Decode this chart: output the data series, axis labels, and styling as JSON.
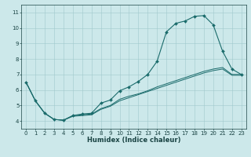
{
  "xlabel": "Humidex (Indice chaleur)",
  "bg_color": "#cce8ea",
  "grid_color": "#a0c8cc",
  "line_color": "#1a6b6b",
  "xlim": [
    -0.5,
    23.5
  ],
  "ylim": [
    3.5,
    11.5
  ],
  "xticks": [
    0,
    1,
    2,
    3,
    4,
    5,
    6,
    7,
    8,
    9,
    10,
    11,
    12,
    13,
    14,
    15,
    16,
    17,
    18,
    19,
    20,
    21,
    22,
    23
  ],
  "yticks": [
    4,
    5,
    6,
    7,
    8,
    9,
    10,
    11
  ],
  "series1_x": [
    0,
    1,
    2,
    3,
    4,
    5,
    6,
    7,
    8,
    9,
    10,
    11,
    12,
    13,
    14,
    15,
    16,
    17,
    18,
    19,
    20,
    21,
    22,
    23
  ],
  "series1_y": [
    6.5,
    5.3,
    4.5,
    4.1,
    4.05,
    4.35,
    4.45,
    4.5,
    5.15,
    5.35,
    5.95,
    6.2,
    6.55,
    7.0,
    7.85,
    9.75,
    10.3,
    10.45,
    10.75,
    10.8,
    10.2,
    8.5,
    7.35,
    7.0
  ],
  "series2_x": [
    0,
    1,
    2,
    3,
    4,
    5,
    6,
    7,
    8,
    9,
    10,
    11,
    12,
    13,
    14,
    15,
    16,
    17,
    18,
    19,
    20,
    21,
    22,
    23
  ],
  "series2_y": [
    6.5,
    5.3,
    4.5,
    4.1,
    4.05,
    4.35,
    4.4,
    4.45,
    4.8,
    5.0,
    5.4,
    5.6,
    5.75,
    5.95,
    6.2,
    6.4,
    6.6,
    6.8,
    7.0,
    7.2,
    7.35,
    7.45,
    7.0,
    7.0
  ],
  "series3_x": [
    0,
    1,
    2,
    3,
    4,
    5,
    6,
    7,
    8,
    9,
    10,
    11,
    12,
    13,
    14,
    15,
    16,
    17,
    18,
    19,
    20,
    21,
    22,
    23
  ],
  "series3_y": [
    6.5,
    5.3,
    4.5,
    4.1,
    4.05,
    4.3,
    4.35,
    4.4,
    4.75,
    4.95,
    5.3,
    5.5,
    5.7,
    5.9,
    6.1,
    6.3,
    6.5,
    6.7,
    6.9,
    7.1,
    7.25,
    7.35,
    6.95,
    6.95
  ],
  "tick_fontsize": 5.0,
  "xlabel_fontsize": 6.0,
  "marker": "D",
  "markersize": 2.0
}
